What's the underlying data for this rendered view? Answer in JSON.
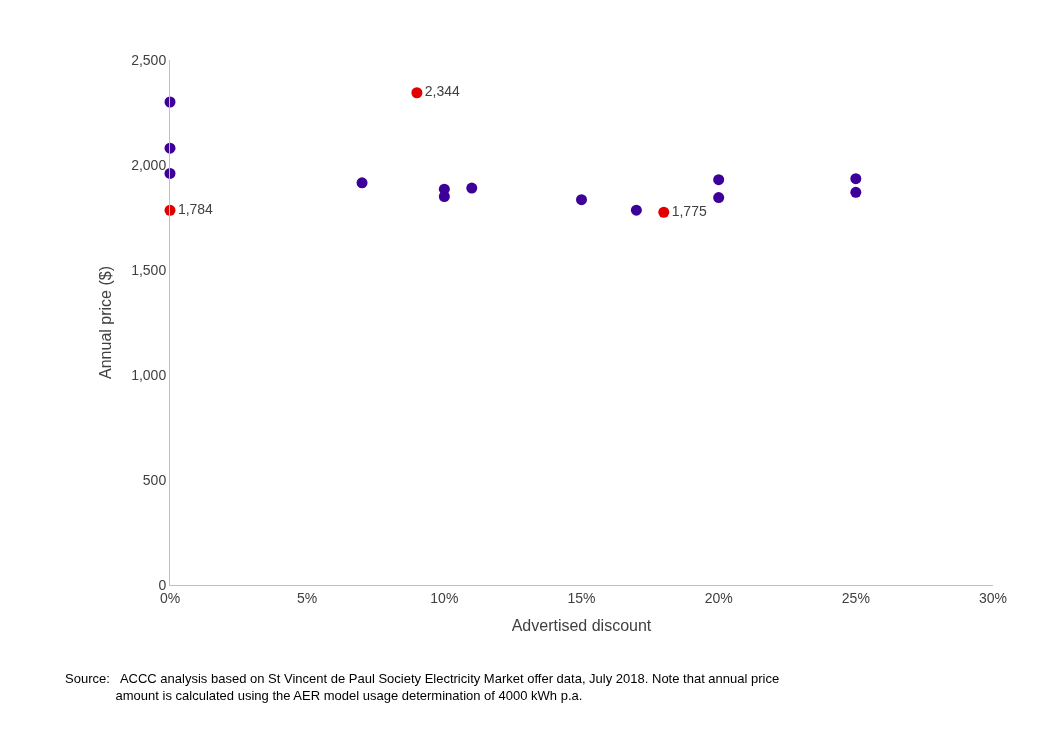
{
  "chart_data": {
    "type": "scatter",
    "xlabel": "Advertised discount",
    "ylabel": "Annual price ($)",
    "xlim": [
      0,
      30
    ],
    "xticks": [
      {
        "value": 0,
        "label": "0%"
      },
      {
        "value": 5,
        "label": "5%"
      },
      {
        "value": 10,
        "label": "10%"
      },
      {
        "value": 15,
        "label": "15%"
      },
      {
        "value": 20,
        "label": "20%"
      },
      {
        "value": 25,
        "label": "25%"
      },
      {
        "value": 30,
        "label": "30%"
      }
    ],
    "ylim": [
      0,
      2500
    ],
    "yticks": [
      {
        "value": 0,
        "label": "0"
      },
      {
        "value": 500,
        "label": "500"
      },
      {
        "value": 1000,
        "label": "1,000"
      },
      {
        "value": 1500,
        "label": "1,500"
      },
      {
        "value": 2000,
        "label": "2,000"
      },
      {
        "value": 2500,
        "label": "2,500"
      }
    ],
    "marker": "circle",
    "series": [
      {
        "color": "#3d0099",
        "x": [
          0,
          0,
          0,
          7,
          10,
          10,
          11,
          15,
          17,
          20,
          20,
          25,
          25
        ],
        "values": [
          2300,
          2080,
          1960,
          1915,
          1885,
          1850,
          1890,
          1835,
          1785,
          1930,
          1845,
          1935,
          1870
        ]
      },
      {
        "color": "#e00000",
        "x": [
          0,
          9,
          18
        ],
        "values": [
          1784,
          2344,
          1775
        ],
        "value_labels": [
          "1,784",
          "2,344",
          "1,775"
        ]
      }
    ],
    "annotations": [
      "Source:   ACCC analysis based on St Vincent de Paul Society Electricity Market offer data, July 2018. Note that annual price\n              amount is calculated using the AER model usage determination of 4000 kWh p.a."
    ]
  }
}
